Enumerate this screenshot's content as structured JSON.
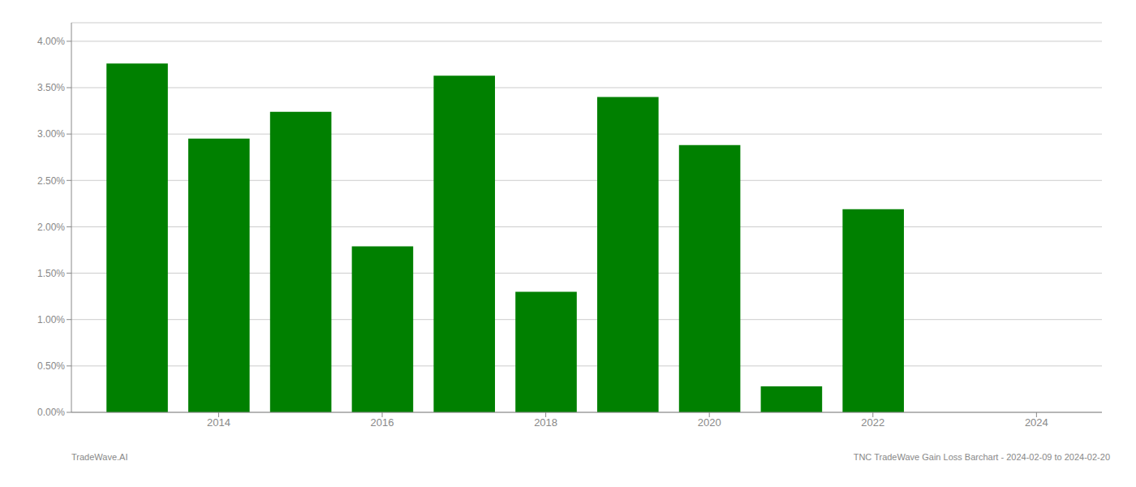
{
  "chart_data": {
    "type": "bar",
    "x": [
      2013,
      2014,
      2015,
      2016,
      2017,
      2018,
      2019,
      2020,
      2021,
      2022
    ],
    "values": [
      0.0376,
      0.0295,
      0.0324,
      0.0179,
      0.0363,
      0.013,
      0.034,
      0.0288,
      0.0028,
      0.0219
    ],
    "color": "#008000",
    "xlim": [
      2012.2,
      2024.8
    ],
    "xticks": [
      2014,
      2016,
      2018,
      2020,
      2022,
      2024
    ],
    "ylim": [
      0,
      0.042
    ],
    "yticks": [
      {
        "value": 0,
        "label": "0.00%"
      },
      {
        "value": 0.005,
        "label": "0.50%"
      },
      {
        "value": 0.01,
        "label": "1.00%"
      },
      {
        "value": 0.015,
        "label": "1.50%"
      },
      {
        "value": 0.02,
        "label": "2.00%"
      },
      {
        "value": 0.025,
        "label": "2.50%"
      },
      {
        "value": 0.03,
        "label": "3.00%"
      },
      {
        "value": 0.035,
        "label": "3.50%"
      },
      {
        "value": 0.04,
        "label": "4.00%"
      }
    ],
    "grid": "y",
    "annotations": [
      "TradeWave.AI",
      "TNC TradeWave Gain Loss Barchart - 2024-02-09 to 2024-02-20"
    ]
  }
}
